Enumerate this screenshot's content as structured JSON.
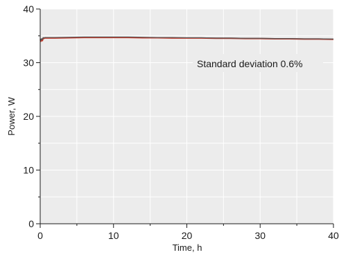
{
  "chart_data": {
    "type": "line",
    "title": "",
    "xlabel": "Time, h",
    "ylabel": "Power, W",
    "xlim": [
      0,
      40
    ],
    "ylim": [
      0,
      40
    ],
    "xticks": [
      0,
      10,
      20,
      30,
      40
    ],
    "yticks": [
      0,
      10,
      20,
      30,
      40
    ],
    "x_minor_step": 5,
    "y_minor_step": 5,
    "grid": true,
    "background_color": "#ececec",
    "annotation": "Standard deviation 0.6%",
    "series": [
      {
        "name": "",
        "color": "#c0392b",
        "x": [
          0.0,
          0.1,
          0.2,
          0.3,
          0.4,
          0.5,
          0.6,
          1,
          2,
          4,
          6,
          8,
          10,
          12,
          14,
          16,
          18,
          20,
          22,
          24,
          26,
          28,
          30,
          32,
          34,
          36,
          38,
          40
        ],
        "y": [
          34.3,
          34.0,
          34.4,
          34.1,
          34.6,
          34.5,
          34.6,
          34.6,
          34.6,
          34.65,
          34.7,
          34.7,
          34.7,
          34.7,
          34.65,
          34.65,
          34.6,
          34.6,
          34.6,
          34.55,
          34.55,
          34.5,
          34.5,
          34.45,
          34.45,
          34.4,
          34.4,
          34.35
        ]
      },
      {
        "name": "",
        "color": "#555555",
        "x": [
          0.0,
          0.1,
          0.2,
          0.3,
          0.4,
          0.5,
          0.6,
          1,
          2,
          4,
          6,
          8,
          10,
          12,
          14,
          16,
          18,
          20,
          22,
          24,
          26,
          28,
          30,
          32,
          34,
          36,
          38,
          40
        ],
        "y": [
          34.5,
          34.2,
          34.5,
          34.3,
          34.7,
          34.6,
          34.7,
          34.7,
          34.7,
          34.75,
          34.8,
          34.8,
          34.8,
          34.8,
          34.75,
          34.7,
          34.7,
          34.65,
          34.65,
          34.6,
          34.6,
          34.55,
          34.55,
          34.5,
          34.5,
          34.45,
          34.45,
          34.4
        ]
      }
    ]
  }
}
